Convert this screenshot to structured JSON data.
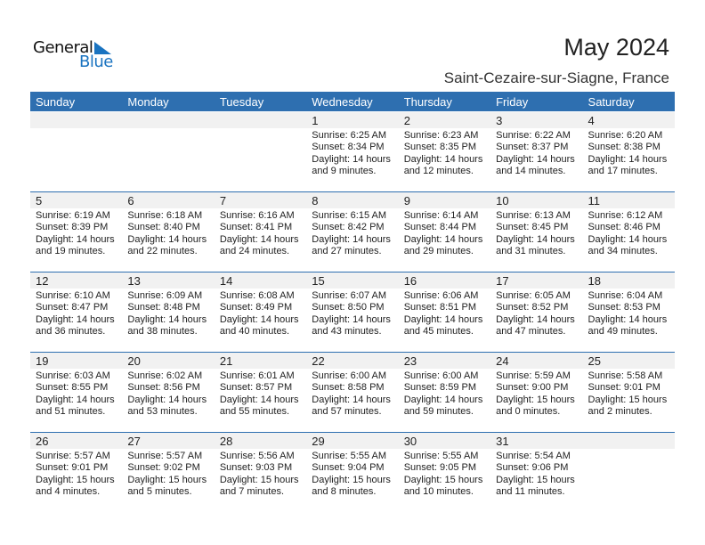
{
  "logo": {
    "line1": "General",
    "line2": "Blue"
  },
  "title": "May 2024",
  "location": "Saint-Cezaire-sur-Siagne, France",
  "colors": {
    "accent": "#2e6fb0",
    "band": "#f1f1f1"
  },
  "weekdays": [
    "Sunday",
    "Monday",
    "Tuesday",
    "Wednesday",
    "Thursday",
    "Friday",
    "Saturday"
  ],
  "weeks": [
    [
      {},
      {},
      {},
      {
        "day": "1",
        "sunrise": "Sunrise: 6:25 AM",
        "sunset": "Sunset: 8:34 PM",
        "daylight": "Daylight: 14 hours",
        "minutes": "and 9 minutes."
      },
      {
        "day": "2",
        "sunrise": "Sunrise: 6:23 AM",
        "sunset": "Sunset: 8:35 PM",
        "daylight": "Daylight: 14 hours",
        "minutes": "and 12 minutes."
      },
      {
        "day": "3",
        "sunrise": "Sunrise: 6:22 AM",
        "sunset": "Sunset: 8:37 PM",
        "daylight": "Daylight: 14 hours",
        "minutes": "and 14 minutes."
      },
      {
        "day": "4",
        "sunrise": "Sunrise: 6:20 AM",
        "sunset": "Sunset: 8:38 PM",
        "daylight": "Daylight: 14 hours",
        "minutes": "and 17 minutes."
      }
    ],
    [
      {
        "day": "5",
        "sunrise": "Sunrise: 6:19 AM",
        "sunset": "Sunset: 8:39 PM",
        "daylight": "Daylight: 14 hours",
        "minutes": "and 19 minutes."
      },
      {
        "day": "6",
        "sunrise": "Sunrise: 6:18 AM",
        "sunset": "Sunset: 8:40 PM",
        "daylight": "Daylight: 14 hours",
        "minutes": "and 22 minutes."
      },
      {
        "day": "7",
        "sunrise": "Sunrise: 6:16 AM",
        "sunset": "Sunset: 8:41 PM",
        "daylight": "Daylight: 14 hours",
        "minutes": "and 24 minutes."
      },
      {
        "day": "8",
        "sunrise": "Sunrise: 6:15 AM",
        "sunset": "Sunset: 8:42 PM",
        "daylight": "Daylight: 14 hours",
        "minutes": "and 27 minutes."
      },
      {
        "day": "9",
        "sunrise": "Sunrise: 6:14 AM",
        "sunset": "Sunset: 8:44 PM",
        "daylight": "Daylight: 14 hours",
        "minutes": "and 29 minutes."
      },
      {
        "day": "10",
        "sunrise": "Sunrise: 6:13 AM",
        "sunset": "Sunset: 8:45 PM",
        "daylight": "Daylight: 14 hours",
        "minutes": "and 31 minutes."
      },
      {
        "day": "11",
        "sunrise": "Sunrise: 6:12 AM",
        "sunset": "Sunset: 8:46 PM",
        "daylight": "Daylight: 14 hours",
        "minutes": "and 34 minutes."
      }
    ],
    [
      {
        "day": "12",
        "sunrise": "Sunrise: 6:10 AM",
        "sunset": "Sunset: 8:47 PM",
        "daylight": "Daylight: 14 hours",
        "minutes": "and 36 minutes."
      },
      {
        "day": "13",
        "sunrise": "Sunrise: 6:09 AM",
        "sunset": "Sunset: 8:48 PM",
        "daylight": "Daylight: 14 hours",
        "minutes": "and 38 minutes."
      },
      {
        "day": "14",
        "sunrise": "Sunrise: 6:08 AM",
        "sunset": "Sunset: 8:49 PM",
        "daylight": "Daylight: 14 hours",
        "minutes": "and 40 minutes."
      },
      {
        "day": "15",
        "sunrise": "Sunrise: 6:07 AM",
        "sunset": "Sunset: 8:50 PM",
        "daylight": "Daylight: 14 hours",
        "minutes": "and 43 minutes."
      },
      {
        "day": "16",
        "sunrise": "Sunrise: 6:06 AM",
        "sunset": "Sunset: 8:51 PM",
        "daylight": "Daylight: 14 hours",
        "minutes": "and 45 minutes."
      },
      {
        "day": "17",
        "sunrise": "Sunrise: 6:05 AM",
        "sunset": "Sunset: 8:52 PM",
        "daylight": "Daylight: 14 hours",
        "minutes": "and 47 minutes."
      },
      {
        "day": "18",
        "sunrise": "Sunrise: 6:04 AM",
        "sunset": "Sunset: 8:53 PM",
        "daylight": "Daylight: 14 hours",
        "minutes": "and 49 minutes."
      }
    ],
    [
      {
        "day": "19",
        "sunrise": "Sunrise: 6:03 AM",
        "sunset": "Sunset: 8:55 PM",
        "daylight": "Daylight: 14 hours",
        "minutes": "and 51 minutes."
      },
      {
        "day": "20",
        "sunrise": "Sunrise: 6:02 AM",
        "sunset": "Sunset: 8:56 PM",
        "daylight": "Daylight: 14 hours",
        "minutes": "and 53 minutes."
      },
      {
        "day": "21",
        "sunrise": "Sunrise: 6:01 AM",
        "sunset": "Sunset: 8:57 PM",
        "daylight": "Daylight: 14 hours",
        "minutes": "and 55 minutes."
      },
      {
        "day": "22",
        "sunrise": "Sunrise: 6:00 AM",
        "sunset": "Sunset: 8:58 PM",
        "daylight": "Daylight: 14 hours",
        "minutes": "and 57 minutes."
      },
      {
        "day": "23",
        "sunrise": "Sunrise: 6:00 AM",
        "sunset": "Sunset: 8:59 PM",
        "daylight": "Daylight: 14 hours",
        "minutes": "and 59 minutes."
      },
      {
        "day": "24",
        "sunrise": "Sunrise: 5:59 AM",
        "sunset": "Sunset: 9:00 PM",
        "daylight": "Daylight: 15 hours",
        "minutes": "and 0 minutes."
      },
      {
        "day": "25",
        "sunrise": "Sunrise: 5:58 AM",
        "sunset": "Sunset: 9:01 PM",
        "daylight": "Daylight: 15 hours",
        "minutes": "and 2 minutes."
      }
    ],
    [
      {
        "day": "26",
        "sunrise": "Sunrise: 5:57 AM",
        "sunset": "Sunset: 9:01 PM",
        "daylight": "Daylight: 15 hours",
        "minutes": "and 4 minutes."
      },
      {
        "day": "27",
        "sunrise": "Sunrise: 5:57 AM",
        "sunset": "Sunset: 9:02 PM",
        "daylight": "Daylight: 15 hours",
        "minutes": "and 5 minutes."
      },
      {
        "day": "28",
        "sunrise": "Sunrise: 5:56 AM",
        "sunset": "Sunset: 9:03 PM",
        "daylight": "Daylight: 15 hours",
        "minutes": "and 7 minutes."
      },
      {
        "day": "29",
        "sunrise": "Sunrise: 5:55 AM",
        "sunset": "Sunset: 9:04 PM",
        "daylight": "Daylight: 15 hours",
        "minutes": "and 8 minutes."
      },
      {
        "day": "30",
        "sunrise": "Sunrise: 5:55 AM",
        "sunset": "Sunset: 9:05 PM",
        "daylight": "Daylight: 15 hours",
        "minutes": "and 10 minutes."
      },
      {
        "day": "31",
        "sunrise": "Sunrise: 5:54 AM",
        "sunset": "Sunset: 9:06 PM",
        "daylight": "Daylight: 15 hours",
        "minutes": "and 11 minutes."
      },
      {}
    ]
  ]
}
